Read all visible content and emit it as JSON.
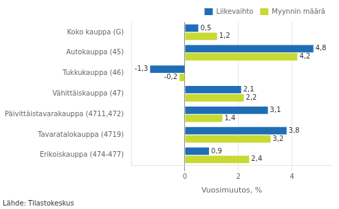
{
  "chart_data": {
    "type": "bar",
    "orientation": "horizontal",
    "categories": [
      "Koko kauppa (G)",
      "Autokauppa (45)",
      "Tukkukauppa (46)",
      "Vähittäiskauppa (47)",
      "Päivittäistavarakauppa (4711,472)",
      "Tavaratalokauppa (4719)",
      "Erikoiskauppa (474-477)"
    ],
    "series": [
      {
        "name": "Liikevaihto",
        "color": "#1f6eb5",
        "values": [
          0.5,
          4.8,
          -1.3,
          2.1,
          3.1,
          3.8,
          0.9
        ],
        "value_labels": [
          "0,5",
          "4,8",
          "-1,3",
          "2,1",
          "3,1",
          "3,8",
          "0,9"
        ]
      },
      {
        "name": "Myynnin määrä",
        "color": "#c8d932",
        "values": [
          1.2,
          4.2,
          -0.2,
          2.2,
          1.4,
          3.2,
          2.4
        ],
        "value_labels": [
          "1,2",
          "4,2",
          "-0,2",
          "2,2",
          "1,4",
          "3,2",
          "2,4"
        ]
      }
    ],
    "xlabel": "Vuosimuutos, %",
    "xlim": [
      -2.0,
      5.5
    ],
    "xticks": [
      0,
      2,
      4
    ],
    "grid": true,
    "legend": "upper right",
    "data_labels": true,
    "annotations": [
      "Lähde: Tilastokeskus"
    ]
  }
}
